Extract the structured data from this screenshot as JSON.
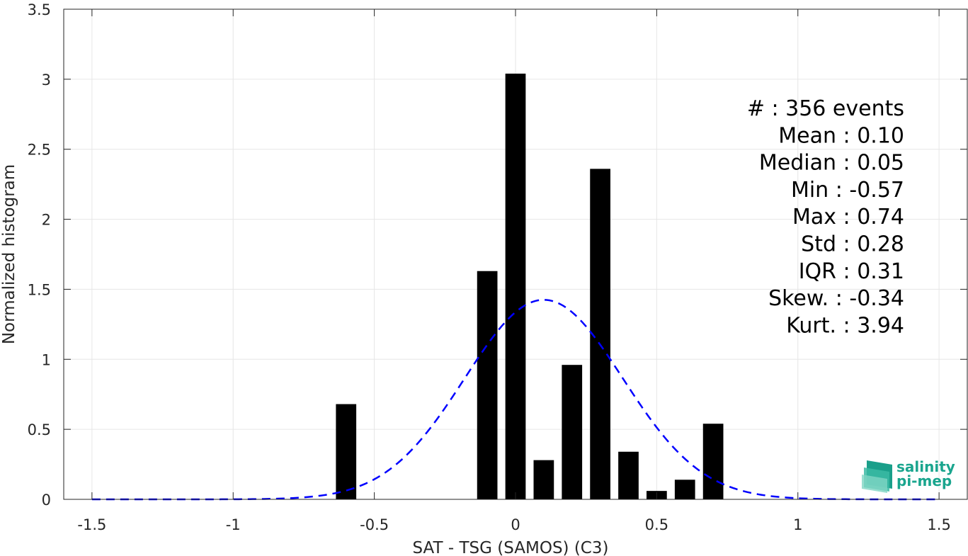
{
  "chart_data": {
    "type": "bar",
    "xlabel": "SAT - TSG (SAMOS) (C3)",
    "ylabel": "Normalized histogram",
    "xlim": [
      -1.6,
      1.6
    ],
    "ylim": [
      0,
      3.5
    ],
    "xticks": [
      -1.5,
      -1,
      -0.5,
      0,
      0.5,
      1,
      1.5
    ],
    "xtick_labels": [
      "-1.5",
      "-1",
      "-0.5",
      "0",
      "0.5",
      "1",
      "1.5"
    ],
    "yticks": [
      0,
      0.5,
      1,
      1.5,
      2,
      2.5,
      3,
      3.5
    ],
    "ytick_labels": [
      "0",
      "0.5",
      "1",
      "1.5",
      "2",
      "2.5",
      "3",
      "3.5"
    ],
    "grid": true,
    "bin_width": 0.1,
    "bars": {
      "x": [
        -0.6,
        -0.1,
        0.0,
        0.1,
        0.2,
        0.3,
        0.4,
        0.5,
        0.6,
        0.7
      ],
      "values": [
        0.68,
        1.63,
        3.04,
        0.28,
        0.96,
        2.36,
        0.34,
        0.06,
        0.14,
        0.54
      ],
      "color": "#000000"
    },
    "fit_curve": {
      "style": "dashed",
      "color": "#0000ff",
      "mean": 0.1,
      "std": 0.28
    },
    "stats_lines": [
      "#  : 356 events",
      "Mean : 0.10",
      "Median : 0.05",
      "Min : -0.57",
      "Max : 0.74",
      "Std : 0.28",
      "IQR : 0.31",
      "Skew. : -0.34",
      "Kurt. : 3.94"
    ]
  },
  "logo": {
    "line1": "salinity",
    "line2": "pi-mep",
    "color": "#1aa58e"
  }
}
